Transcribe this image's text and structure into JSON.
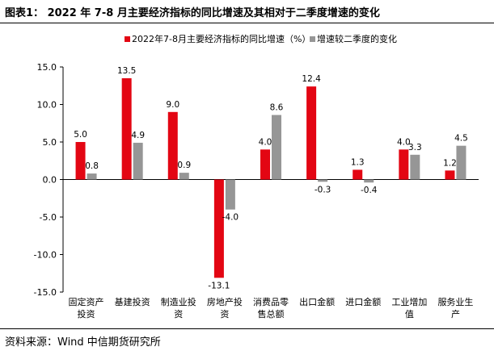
{
  "title": "图表1：  2022 年 7-8 月主要经济指标的同比增速及其相对于二季度增速的变化",
  "source": "资料来源：Wind  中信期货研究所",
  "colors": {
    "series1": "#e30613",
    "series2": "#969696",
    "axis": "#000000"
  },
  "chart_data": {
    "type": "bar",
    "categories": [
      [
        "固定资产",
        "投资"
      ],
      [
        "基建投资"
      ],
      [
        "制造业投",
        "资"
      ],
      [
        "房地产投",
        "资"
      ],
      [
        "消费品零",
        "售总额"
      ],
      [
        "出口金额"
      ],
      [
        "进口金额"
      ],
      [
        "工业增加",
        "值"
      ],
      [
        "服务业生",
        "产"
      ]
    ],
    "series": [
      {
        "name": "2022年7-8月主要经济指标的同比增速（%）",
        "values": [
          5.0,
          13.5,
          9.0,
          -13.1,
          4.0,
          12.4,
          1.3,
          4.0,
          1.2
        ],
        "labels": [
          "5.0",
          "13.5",
          "9.0",
          "-13.1",
          "4.0",
          "12.4",
          "1.3",
          "4.0",
          "1.2"
        ]
      },
      {
        "name": "增速较二季度的变化",
        "values": [
          0.8,
          4.9,
          0.9,
          -4.0,
          8.6,
          -0.3,
          -0.4,
          3.3,
          4.5
        ],
        "labels": [
          "0.8",
          "4.9",
          "0.9",
          "-4.0",
          "8.6",
          "-0.3",
          "-0.4",
          "3.3",
          "4.5"
        ]
      }
    ],
    "ylim": [
      -15,
      15
    ],
    "yticks": [
      15,
      10,
      5,
      0,
      -5,
      -10,
      -15
    ],
    "ytick_labels": [
      "15.0",
      "10.0",
      "5.0",
      "0.0",
      "-5.0",
      "-10.0",
      "-15.0"
    ],
    "grid": false,
    "legend": "top"
  }
}
